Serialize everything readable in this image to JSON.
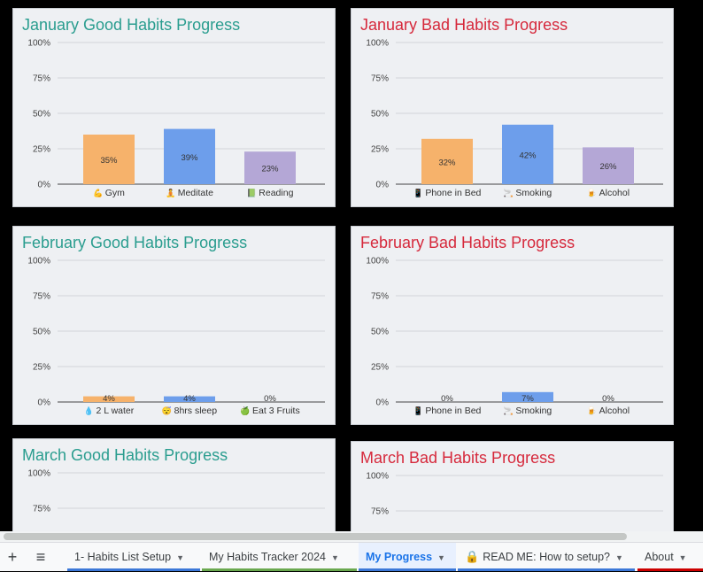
{
  "charts": [
    {
      "id": "jan-good",
      "title": "January Good Habits Progress",
      "kind": "good",
      "chart_data": {
        "type": "bar",
        "categories": [
          "Gym",
          "Meditate",
          "Reading"
        ],
        "icons": [
          "💪",
          "🧘",
          "📗"
        ],
        "values": [
          35,
          39,
          23
        ],
        "labels": [
          "35%",
          "39%",
          "23%"
        ],
        "colors": [
          "#f6b26b",
          "#6d9eeb",
          "#b4a7d6"
        ],
        "yticks": [
          "100%",
          "75%",
          "50%",
          "25%",
          "0%"
        ],
        "ylim": [
          0,
          100
        ]
      }
    },
    {
      "id": "jan-bad",
      "title": "January Bad Habits Progress",
      "kind": "bad",
      "chart_data": {
        "type": "bar",
        "categories": [
          "Phone in Bed",
          "Smoking",
          "Alcohol"
        ],
        "icons": [
          "📱",
          "🚬",
          "🍺"
        ],
        "values": [
          32,
          42,
          26
        ],
        "labels": [
          "32%",
          "42%",
          "26%"
        ],
        "colors": [
          "#f6b26b",
          "#6d9eeb",
          "#b4a7d6"
        ],
        "yticks": [
          "100%",
          "75%",
          "50%",
          "25%",
          "0%"
        ],
        "ylim": [
          0,
          100
        ]
      }
    },
    {
      "id": "feb-good",
      "title": "February Good Habits Progress",
      "kind": "good",
      "chart_data": {
        "type": "bar",
        "categories": [
          "2 L water",
          "8hrs sleep",
          "Eat 3 Fruits"
        ],
        "icons": [
          "💧",
          "😴",
          "🍏"
        ],
        "values": [
          4,
          4,
          0
        ],
        "labels": [
          "4%",
          "4%",
          "0%"
        ],
        "colors": [
          "#f6b26b",
          "#6d9eeb",
          "#b4a7d6"
        ],
        "yticks": [
          "100%",
          "75%",
          "50%",
          "25%",
          "0%"
        ],
        "ylim": [
          0,
          100
        ]
      }
    },
    {
      "id": "feb-bad",
      "title": "February Bad Habits Progress",
      "kind": "bad",
      "chart_data": {
        "type": "bar",
        "categories": [
          "Phone in Bed",
          "Smoking",
          "Alcohol"
        ],
        "icons": [
          "📱",
          "🚬",
          "🍺"
        ],
        "values": [
          0,
          7,
          0
        ],
        "labels": [
          "0%",
          "7%",
          "0%"
        ],
        "colors": [
          "#f6b26b",
          "#6d9eeb",
          "#b4a7d6"
        ],
        "yticks": [
          "100%",
          "75%",
          "50%",
          "25%",
          "0%"
        ],
        "ylim": [
          0,
          100
        ]
      }
    },
    {
      "id": "mar-good",
      "title": "March Good Habits Progress",
      "kind": "good",
      "chart_data": {
        "type": "bar",
        "categories": [],
        "icons": [],
        "values": [],
        "labels": [],
        "colors": [
          "#f6b26b",
          "#6d9eeb",
          "#b4a7d6"
        ],
        "yticks": [
          "100%",
          "75%"
        ],
        "ylim": [
          0,
          100
        ]
      }
    },
    {
      "id": "mar-bad",
      "title": "March Bad Habits Progress",
      "kind": "bad",
      "chart_data": {
        "type": "bar",
        "categories": [],
        "icons": [],
        "values": [],
        "labels": [],
        "colors": [
          "#f6b26b",
          "#6d9eeb",
          "#b4a7d6"
        ],
        "yticks": [
          "100%",
          "75%"
        ],
        "ylim": [
          0,
          100
        ]
      }
    }
  ],
  "toolbar": {
    "add_icon": "+",
    "menu_icon": "≡"
  },
  "tabs": [
    {
      "label": "1- Habits List Setup",
      "active": false,
      "color": "#3c78d8"
    },
    {
      "label": "My Habits Tracker 2024",
      "active": false,
      "color": "#6aa84f"
    },
    {
      "label": "My Progress",
      "active": true,
      "color": "#3c78d8"
    },
    {
      "label": "READ ME: How to setup?",
      "active": false,
      "color": "#3c78d8",
      "lock": "🔒"
    },
    {
      "label": "About",
      "active": false,
      "color": "#cc0000"
    }
  ],
  "caret": "▼"
}
